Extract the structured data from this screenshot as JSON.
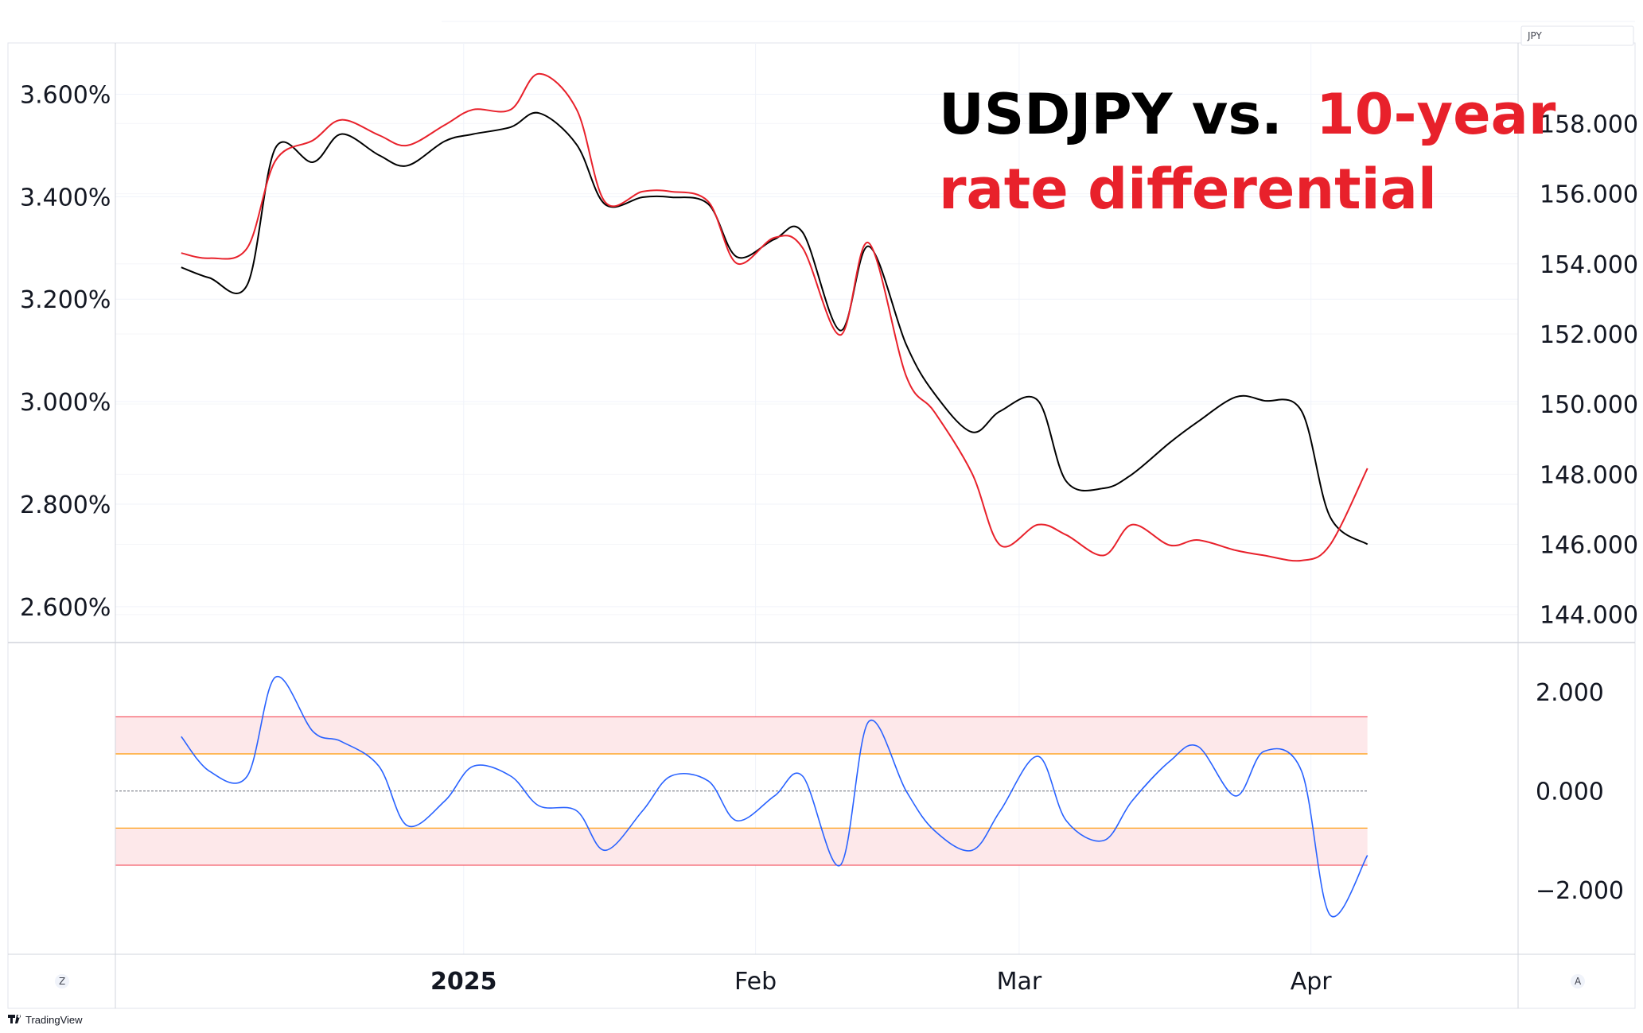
{
  "header": {
    "currency_badge": "JPY"
  },
  "title": {
    "part1": "USDJPY vs.",
    "part2": "10-year",
    "part3": "rate differential",
    "colors": {
      "black": "#000000",
      "red": "#e8212b"
    }
  },
  "footer": {
    "brand_text": "TradingView",
    "left_corner_label": "Z",
    "right_corner_label": "A"
  },
  "chart_data": [
    {
      "type": "line",
      "panel": "main",
      "left_axis": {
        "ticks": [
          "3.600%",
          "3.400%",
          "3.200%",
          "3.000%",
          "2.800%",
          "2.600%"
        ],
        "tick_values": [
          3.6,
          3.4,
          3.2,
          3.0,
          2.8,
          2.6
        ],
        "ylim": [
          2.53,
          3.7
        ]
      },
      "right_axis": {
        "ticks": [
          "158.000",
          "156.000",
          "154.000",
          "152.000",
          "150.000",
          "148.000",
          "146.000",
          "144.000"
        ],
        "tick_values": [
          158,
          156,
          154,
          152,
          150,
          148,
          146,
          144
        ],
        "ylim": [
          143.2,
          160.3
        ]
      },
      "x": [
        "2024-12-02",
        "2024-12-05",
        "2024-12-09",
        "2024-12-12",
        "2024-12-16",
        "2024-12-19",
        "2024-12-23",
        "2024-12-26",
        "2024-12-30",
        "2025-01-02",
        "2025-01-06",
        "2025-01-09",
        "2025-01-13",
        "2025-01-16",
        "2025-01-20",
        "2025-01-23",
        "2025-01-27",
        "2025-01-30",
        "2025-02-03",
        "2025-02-06",
        "2025-02-10",
        "2025-02-13",
        "2025-02-17",
        "2025-02-20",
        "2025-02-24",
        "2025-02-27",
        "2025-03-03",
        "2025-03-06",
        "2025-03-10",
        "2025-03-13",
        "2025-03-17",
        "2025-03-20",
        "2025-03-24",
        "2025-03-27",
        "2025-03-31",
        "2025-04-03",
        "2025-04-07"
      ],
      "series": [
        {
          "name": "USDJPY",
          "axis": "right",
          "color": "#000000",
          "values": [
            153.9,
            153.6,
            153.4,
            157.3,
            156.9,
            157.7,
            157.1,
            156.8,
            157.5,
            157.7,
            157.9,
            158.3,
            157.4,
            155.7,
            155.9,
            155.9,
            155.7,
            154.2,
            154.7,
            154.9,
            152.1,
            154.5,
            151.7,
            150.3,
            149.2,
            149.8,
            150.1,
            147.8,
            147.6,
            148.0,
            148.9,
            149.5,
            150.2,
            150.1,
            149.8,
            146.8,
            146.0
          ]
        },
        {
          "name": "10-year rate differential",
          "axis": "left",
          "color": "#e8212b",
          "values": [
            3.29,
            3.28,
            3.3,
            3.47,
            3.51,
            3.55,
            3.52,
            3.5,
            3.54,
            3.57,
            3.57,
            3.64,
            3.57,
            3.39,
            3.41,
            3.41,
            3.39,
            3.27,
            3.32,
            3.3,
            3.13,
            3.31,
            3.05,
            2.98,
            2.86,
            2.72,
            2.76,
            2.74,
            2.7,
            2.76,
            2.72,
            2.73,
            2.71,
            2.7,
            2.69,
            2.72,
            2.87
          ]
        }
      ]
    },
    {
      "type": "line",
      "panel": "oscillator",
      "right_axis": {
        "ticks": [
          "2.000",
          "0.000",
          "−2.000"
        ],
        "tick_values": [
          2,
          0,
          -2
        ],
        "ylim": [
          -3.3,
          3.0
        ]
      },
      "bands": {
        "outer": [
          -1.5,
          1.5
        ],
        "inner": [
          -0.75,
          0.75
        ],
        "midline": 0,
        "outer_color": "#f23645",
        "inner_color": "#ff9800",
        "fill_color": "#fde8ea"
      },
      "x": [
        "2024-12-02",
        "2024-12-05",
        "2024-12-09",
        "2024-12-12",
        "2024-12-16",
        "2024-12-19",
        "2024-12-23",
        "2024-12-26",
        "2024-12-30",
        "2025-01-02",
        "2025-01-06",
        "2025-01-09",
        "2025-01-13",
        "2025-01-16",
        "2025-01-20",
        "2025-01-23",
        "2025-01-27",
        "2025-01-30",
        "2025-02-03",
        "2025-02-06",
        "2025-02-10",
        "2025-02-13",
        "2025-02-17",
        "2025-02-20",
        "2025-02-24",
        "2025-02-27",
        "2025-03-03",
        "2025-03-06",
        "2025-03-10",
        "2025-03-13",
        "2025-03-17",
        "2025-03-20",
        "2025-03-24",
        "2025-03-27",
        "2025-03-31",
        "2025-04-03",
        "2025-04-07"
      ],
      "series": [
        {
          "name": "",
          "color": "#2962ff",
          "values": [
            1.1,
            0.4,
            0.3,
            2.3,
            1.2,
            1.0,
            0.5,
            -0.7,
            -0.2,
            0.5,
            0.3,
            -0.3,
            -0.4,
            -1.2,
            -0.4,
            0.3,
            0.2,
            -0.6,
            -0.1,
            0.3,
            -1.5,
            1.4,
            0.0,
            -0.8,
            -1.2,
            -0.4,
            0.7,
            -0.6,
            -1.0,
            -0.2,
            0.6,
            0.9,
            -0.1,
            0.8,
            0.4,
            -2.5,
            -1.3
          ]
        }
      ]
    }
  ],
  "time_axis": {
    "labels": [
      {
        "text": "2025",
        "date": "2025-01-01",
        "bold": true
      },
      {
        "text": "Feb",
        "date": "2025-02-01",
        "bold": false
      },
      {
        "text": "Mar",
        "date": "2025-03-01",
        "bold": false
      },
      {
        "text": "Apr",
        "date": "2025-04-01",
        "bold": false
      }
    ],
    "range": [
      "2024-11-25",
      "2025-04-23"
    ]
  },
  "grid": true,
  "legend": "none"
}
